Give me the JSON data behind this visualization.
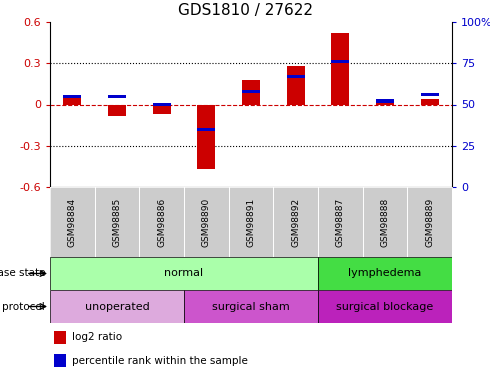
{
  "title": "GDS1810 / 27622",
  "samples": [
    "GSM98884",
    "GSM98885",
    "GSM98886",
    "GSM98890",
    "GSM98891",
    "GSM98892",
    "GSM98887",
    "GSM98888",
    "GSM98889"
  ],
  "log2_ratio": [
    0.05,
    -0.08,
    -0.07,
    -0.47,
    0.18,
    0.28,
    0.52,
    0.02,
    0.04
  ],
  "percentile_rank": [
    55,
    55,
    50,
    35,
    58,
    67,
    76,
    52,
    56
  ],
  "ylim_left": [
    -0.6,
    0.6
  ],
  "ylim_right": [
    0,
    100
  ],
  "yticks_left": [
    -0.6,
    -0.3,
    0.0,
    0.3,
    0.6
  ],
  "yticks_right": [
    0,
    25,
    50,
    75,
    100
  ],
  "left_tick_labels": [
    "-0.6",
    "-0.3",
    "0",
    "0.3",
    "0.6"
  ],
  "right_tick_labels": [
    "0",
    "25",
    "50",
    "75",
    "100%"
  ],
  "left_color": "#cc0000",
  "right_color": "#0000cc",
  "dashed_line_color": "#cc0000",
  "disease_state_groups": [
    {
      "label": "normal",
      "start": 0,
      "end": 6,
      "color": "#aaffaa"
    },
    {
      "label": "lymphedema",
      "start": 6,
      "end": 9,
      "color": "#44dd44"
    }
  ],
  "protocol_groups": [
    {
      "label": "unoperated",
      "start": 0,
      "end": 3,
      "color": "#ddaadd"
    },
    {
      "label": "surgical sham",
      "start": 3,
      "end": 6,
      "color": "#cc55cc"
    },
    {
      "label": "surgical blockage",
      "start": 6,
      "end": 9,
      "color": "#bb22bb"
    }
  ],
  "bg_color": "#ffffff",
  "sample_bg_color": "#cccccc",
  "bar_width": 0.4,
  "blue_bar_height": 0.025
}
